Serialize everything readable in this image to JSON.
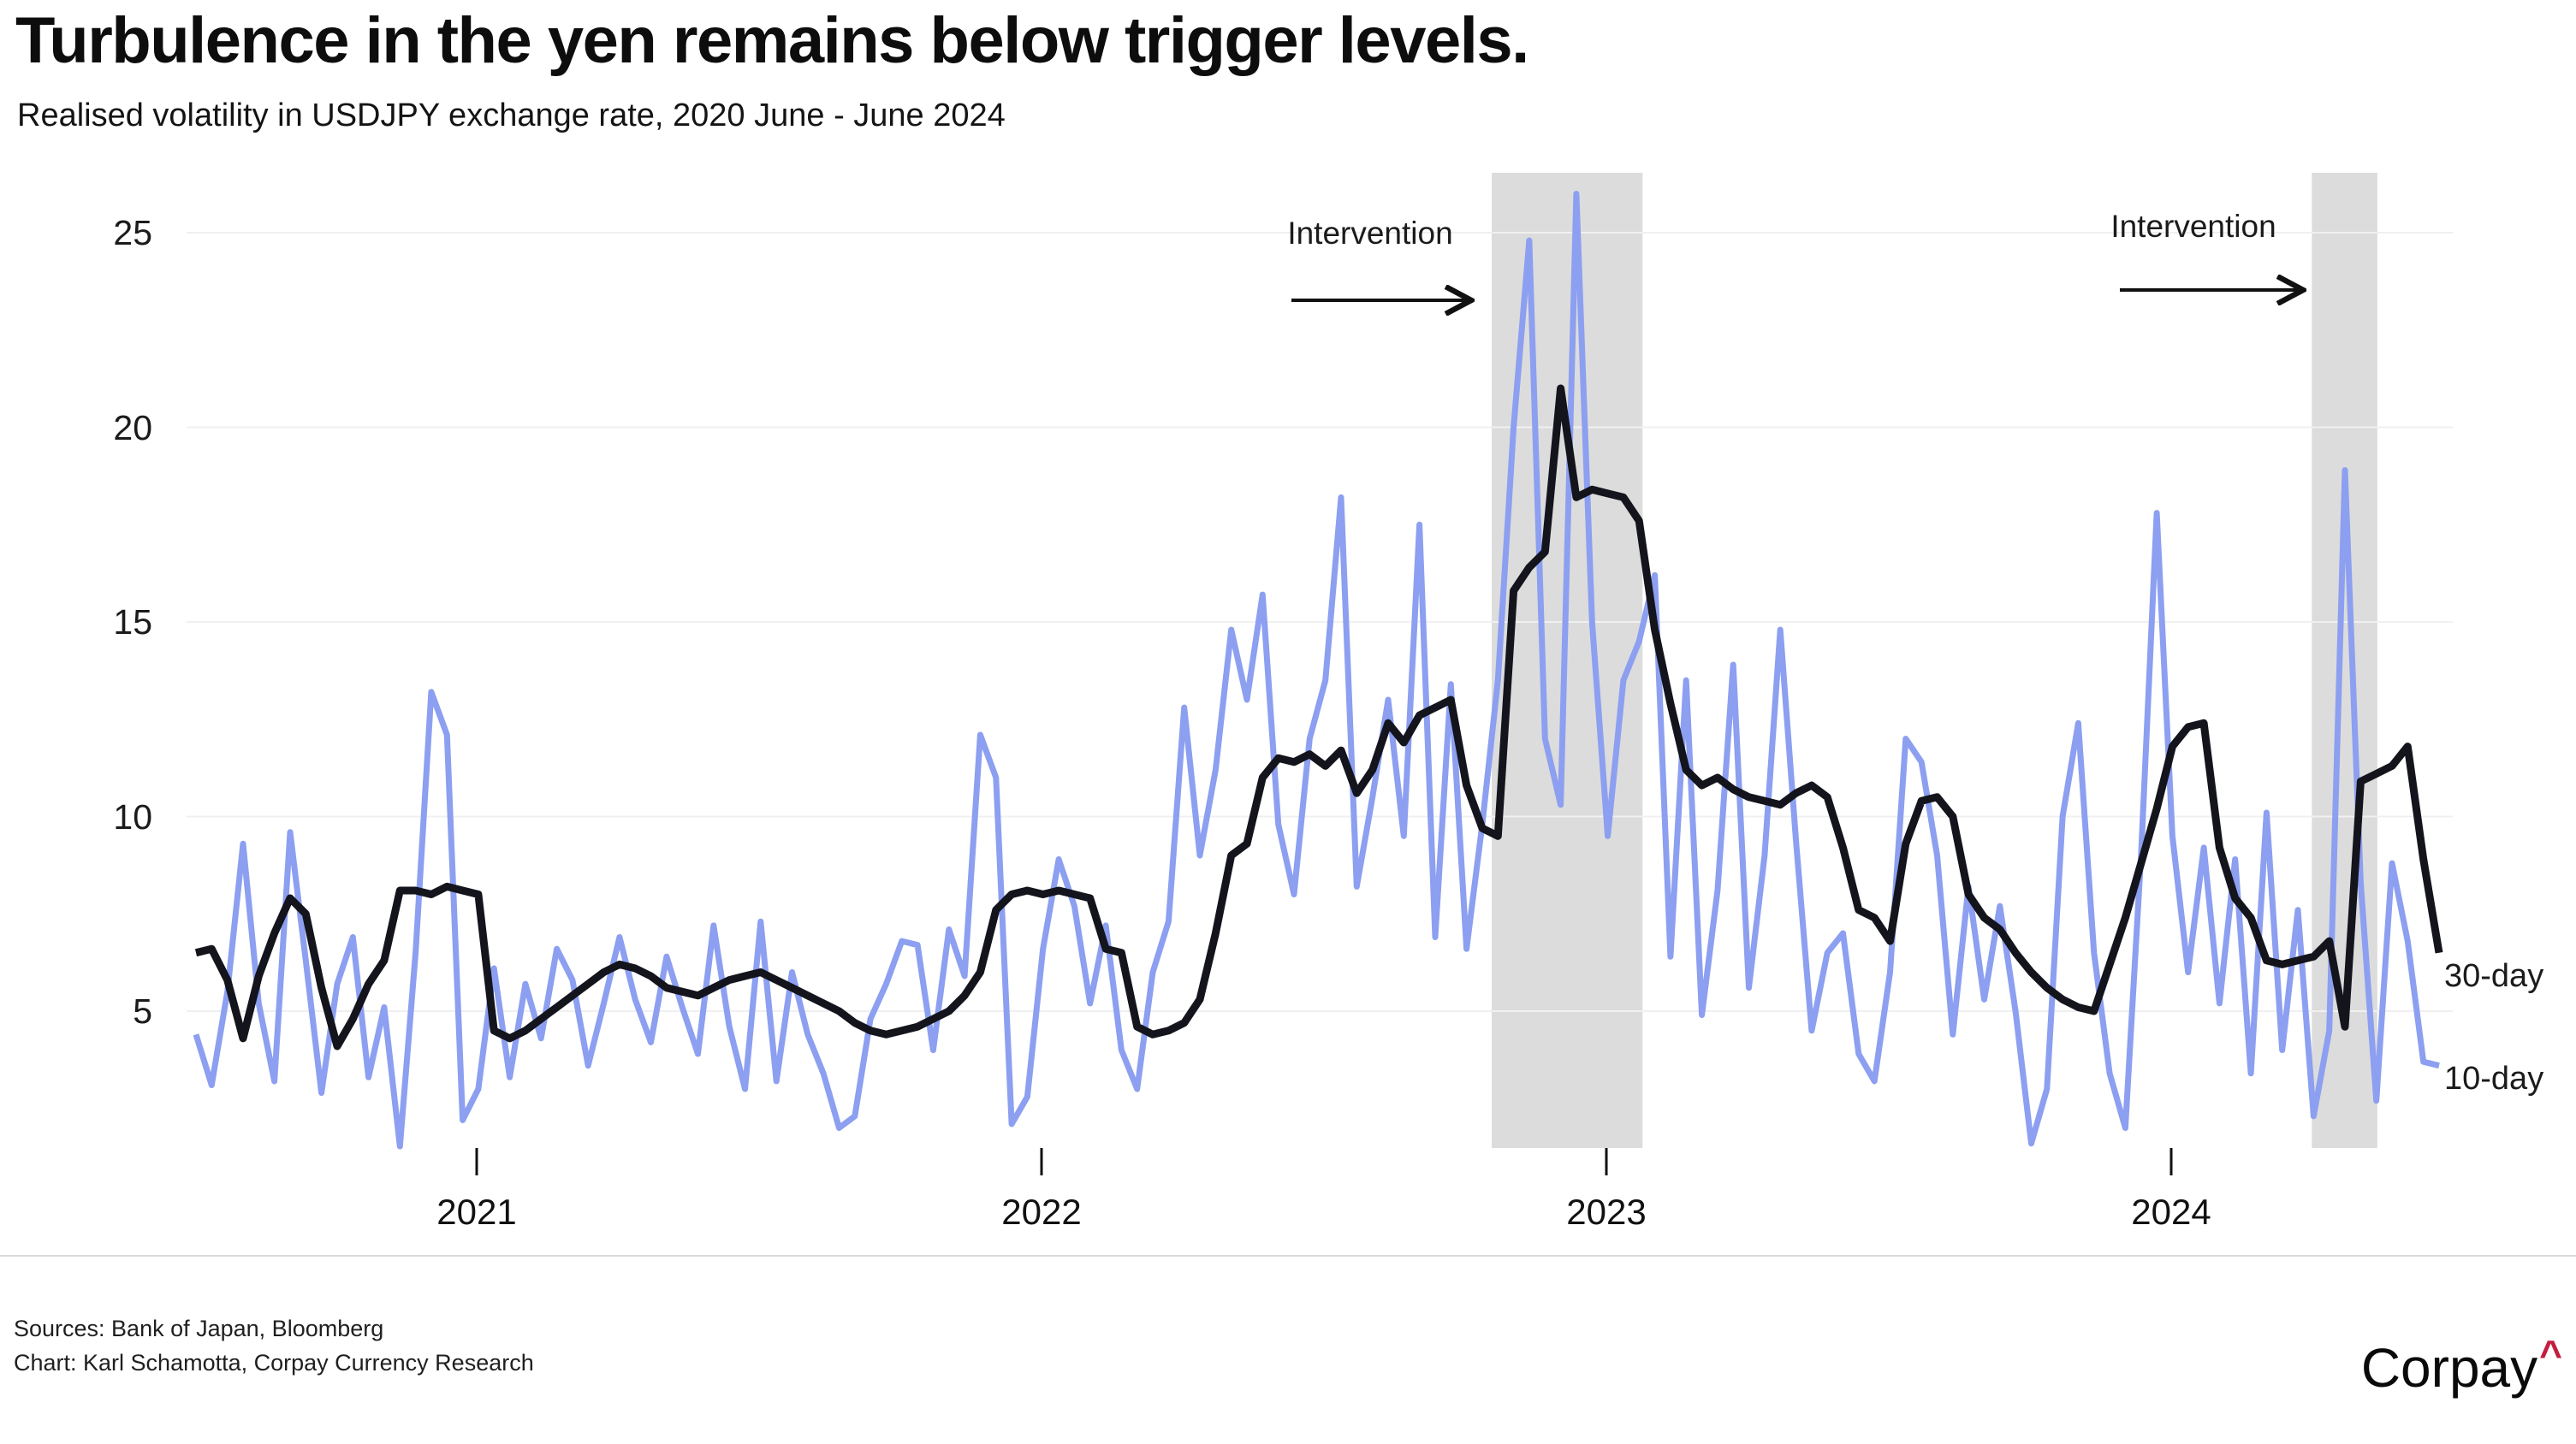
{
  "title": "Turbulence in the yen remains below trigger levels.",
  "subtitle": "Realised volatility in USDJPY exchange rate, 2020 June - June 2024",
  "chart_data": {
    "type": "line",
    "title": "Realised volatility in USDJPY exchange rate",
    "x_range_years": [
      2020.5,
      2024.47
    ],
    "x_step_years": 0.02778,
    "x_tick_years": [
      2021,
      2022,
      2023,
      2024
    ],
    "x_tick_labels": [
      "2021",
      "2022",
      "2023",
      "2024"
    ],
    "ylabel": "",
    "y_ticks": [
      5,
      10,
      15,
      20,
      25
    ],
    "ylim": [
      1.3,
      26.5
    ],
    "grid": "horizontal",
    "legend_position": "right-of-line-ends",
    "intervention_bands_years": [
      [
        2022.797,
        2023.064
      ],
      [
        2024.249,
        2024.365
      ]
    ],
    "band_color": "#dcdcdc",
    "grid_color": "#f0f0f0",
    "annotations": [
      {
        "label": "Intervention",
        "text_center_x_year": 2022.58,
        "arrow_points_to_band": 0
      },
      {
        "label": "Intervention",
        "text_center_x_year": 2024.04,
        "arrow_points_to_band": 1
      }
    ],
    "series": [
      {
        "name": "10-day",
        "color": "#8C9FF0",
        "stroke_width": 7,
        "values": [
          4.4,
          3.1,
          5.5,
          9.3,
          5.2,
          3.2,
          9.6,
          6.3,
          2.9,
          5.7,
          6.9,
          3.3,
          5.1,
          1.5,
          6.5,
          13.2,
          12.1,
          2.2,
          3.0,
          6.1,
          3.3,
          5.7,
          4.3,
          6.6,
          5.8,
          3.6,
          5.2,
          6.9,
          5.3,
          4.2,
          6.4,
          5.1,
          3.9,
          7.2,
          4.6,
          3.0,
          7.3,
          3.2,
          6.0,
          4.4,
          3.4,
          2.0,
          2.3,
          4.8,
          5.7,
          6.8,
          6.7,
          4.0,
          7.1,
          5.9,
          12.1,
          11.0,
          2.1,
          2.8,
          6.6,
          8.9,
          7.7,
          5.2,
          7.2,
          4.0,
          3.0,
          6.0,
          7.3,
          12.8,
          9.0,
          11.2,
          14.8,
          13.0,
          15.7,
          9.8,
          8.0,
          12.0,
          13.5,
          18.2,
          8.2,
          10.5,
          13.0,
          9.5,
          17.5,
          6.9,
          13.4,
          6.6,
          9.8,
          13.5,
          20.0,
          24.8,
          12.0,
          10.3,
          26.0,
          15.0,
          9.5,
          13.5,
          14.5,
          16.2,
          6.4,
          13.5,
          4.9,
          8.1,
          13.9,
          5.6,
          9.0,
          14.8,
          9.4,
          4.5,
          6.5,
          7.0,
          3.9,
          3.2,
          6.0,
          12.0,
          11.4,
          9.0,
          4.4,
          8.2,
          5.3,
          7.7,
          5.0,
          1.6,
          3.0,
          10.0,
          12.4,
          6.5,
          3.4,
          2.0,
          9.0,
          17.8,
          9.5,
          6.0,
          9.2,
          5.2,
          8.9,
          3.4,
          10.1,
          4.0,
          7.6,
          2.3,
          4.5,
          18.9,
          8.3,
          2.7,
          8.8,
          6.8,
          3.7,
          3.6
        ]
      },
      {
        "name": "30-day",
        "color": "#14141d",
        "stroke_width": 9,
        "values": [
          6.5,
          6.6,
          5.8,
          4.3,
          5.9,
          7.0,
          7.9,
          7.5,
          5.6,
          4.1,
          4.8,
          5.7,
          6.3,
          8.1,
          8.1,
          8.0,
          8.2,
          8.1,
          8.0,
          4.5,
          4.3,
          4.5,
          4.8,
          5.1,
          5.4,
          5.7,
          6.0,
          6.2,
          6.1,
          5.9,
          5.6,
          5.5,
          5.4,
          5.6,
          5.8,
          5.9,
          6.0,
          5.8,
          5.6,
          5.4,
          5.2,
          5.0,
          4.7,
          4.5,
          4.4,
          4.5,
          4.6,
          4.8,
          5.0,
          5.4,
          6.0,
          7.6,
          8.0,
          8.1,
          8.0,
          8.1,
          8.0,
          7.9,
          6.6,
          6.5,
          4.6,
          4.4,
          4.5,
          4.7,
          5.3,
          7.0,
          9.0,
          9.3,
          11.0,
          11.5,
          11.4,
          11.6,
          11.3,
          11.7,
          10.6,
          11.2,
          12.4,
          11.9,
          12.6,
          12.8,
          13.0,
          10.8,
          9.7,
          9.5,
          15.8,
          16.4,
          16.8,
          21.0,
          18.2,
          18.4,
          18.3,
          18.2,
          17.6,
          14.8,
          12.9,
          11.2,
          10.8,
          11.0,
          10.7,
          10.5,
          10.4,
          10.3,
          10.6,
          10.8,
          10.5,
          9.2,
          7.6,
          7.4,
          6.8,
          9.3,
          10.4,
          10.5,
          10.0,
          8.0,
          7.4,
          7.1,
          6.5,
          6.0,
          5.6,
          5.3,
          5.1,
          5.0,
          6.2,
          7.4,
          8.8,
          10.2,
          11.8,
          12.3,
          12.4,
          9.2,
          7.9,
          7.4,
          6.3,
          6.2,
          6.3,
          6.4,
          6.8,
          4.6,
          10.9,
          11.1,
          11.3,
          11.8,
          8.9,
          6.5
        ]
      }
    ]
  },
  "series_end_labels": {
    "top": "30-day",
    "bottom": "10-day"
  },
  "footer": {
    "sources": "Sources: Bank of Japan, Bloomberg",
    "credit": "Chart: Karl Schamotta, Corpay Currency Research"
  },
  "logo": {
    "text": "Corpay",
    "caret": "^",
    "caret_color": "#C21F3F"
  }
}
